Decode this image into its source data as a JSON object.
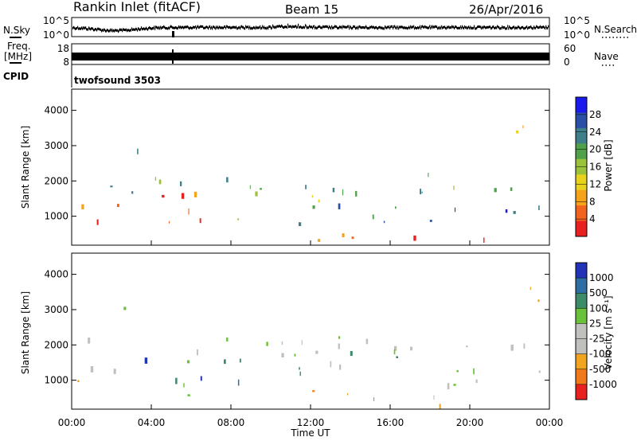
{
  "header": {
    "station": "Rankin Inlet (fitACF)",
    "beam": "Beam 15",
    "date": "26/Apr/2016"
  },
  "panels": {
    "nsky": {
      "label": "N.Sky",
      "tick_top": "10^5",
      "tick_bottom": "10^0",
      "right_label": "N.Search",
      "right_tick_top": "10^5",
      "right_tick_bottom": "10^0"
    },
    "freq": {
      "label_line1": "Freq.",
      "label_line2": "[MHz]",
      "tick_top": "18",
      "tick_bottom": "8",
      "right_label": "Nave",
      "right_tick_top": "60",
      "right_tick_bottom": "0"
    },
    "cpid": {
      "label": "CPID",
      "value": "twofsound 3503"
    }
  },
  "chart_data": [
    {
      "type": "heatmap",
      "name": "power-panel",
      "ylabel": "Slant Range [km]",
      "ylim": [
        180,
        4600
      ],
      "y_ticks": [
        "1000",
        "2000",
        "3000",
        "4000"
      ],
      "colorbar_label": "Power [dB]",
      "colorbar_ticks": [
        "4",
        "8",
        "12",
        "16",
        "20",
        "24",
        "28"
      ],
      "colorbar_colors": [
        "#1a1aee",
        "#2a4fa6",
        "#3f7f8a",
        "#4fa24a",
        "#9ac23a",
        "#e8d21d",
        "#f6a21a",
        "#f2631f",
        "#e8201e"
      ]
    },
    {
      "type": "heatmap",
      "name": "velocity-panel",
      "xlabel": "Time UT",
      "ylabel": "Slant Range [km]",
      "xlim": [
        "00:00",
        "24:00"
      ],
      "x_ticks": [
        "00:00",
        "04:00",
        "08:00",
        "12:00",
        "16:00",
        "20:00",
        "00:00"
      ],
      "ylim": [
        180,
        4600
      ],
      "y_ticks": [
        "1000",
        "2000",
        "3000",
        "4000"
      ],
      "colorbar_label": "Velocity [m s⁻¹]",
      "colorbar_ticks": [
        "1000",
        "500",
        "100",
        "25",
        "-25",
        "-100",
        "-500",
        "-1000"
      ],
      "colorbar_colors": [
        "#2233b8",
        "#2f6ea5",
        "#3c8c6a",
        "#6ac23a",
        "#c0c0bc",
        "#c0c0bc",
        "#f1a41f",
        "#f07a1b",
        "#e8201e"
      ]
    }
  ]
}
